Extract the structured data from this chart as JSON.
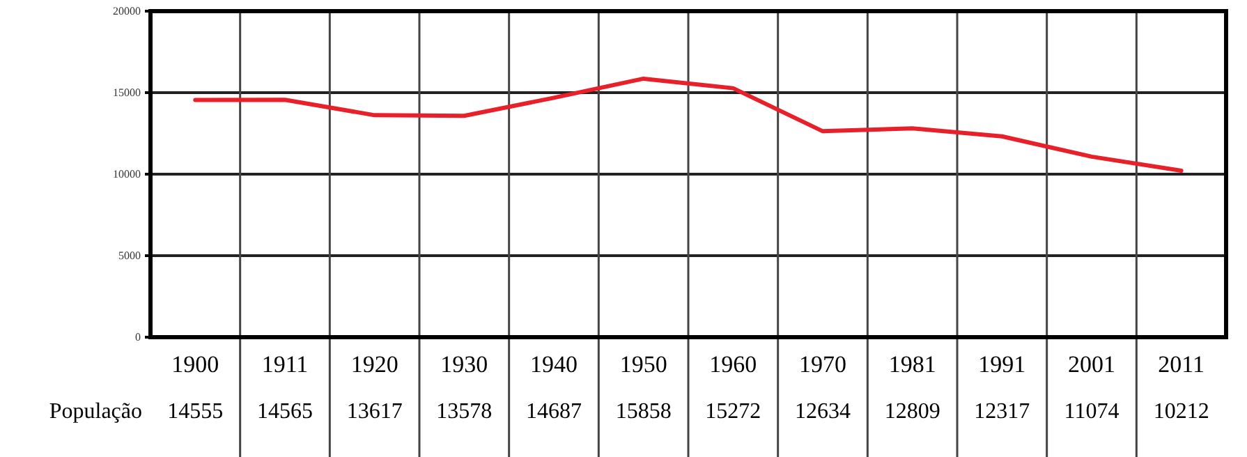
{
  "chart_data": {
    "type": "line",
    "categories": [
      "1900",
      "1911",
      "1920",
      "1930",
      "1940",
      "1950",
      "1960",
      "1970",
      "1981",
      "1991",
      "2001",
      "2011"
    ],
    "series": [
      {
        "name": "População",
        "color": "#e8202a",
        "values": [
          14555,
          14565,
          13617,
          13578,
          14687,
          15858,
          15272,
          12634,
          12809,
          12317,
          11074,
          10212
        ]
      }
    ],
    "ylim": [
      0,
      20000
    ],
    "yticks": [
      0,
      5000,
      10000,
      15000,
      20000
    ],
    "grid": true,
    "data_labels": true
  }
}
